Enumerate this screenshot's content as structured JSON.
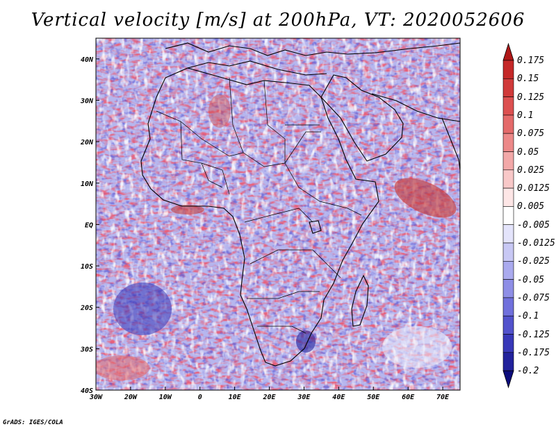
{
  "title": "Vertical velocity [m/s] at 200hPa, VT: 2020052606",
  "credit": "GrADS: IGES/COLA",
  "chart_data": {
    "type": "heatmap",
    "variable": "Vertical velocity",
    "units": "m/s",
    "level": "200hPa",
    "valid_time": "2020052606",
    "lon_range": [
      -30,
      75
    ],
    "lat_range": [
      -40,
      45
    ],
    "x_ticks": [
      "30W",
      "20W",
      "10W",
      "0",
      "10E",
      "20E",
      "30E",
      "40E",
      "50E",
      "60E",
      "70E"
    ],
    "y_ticks": [
      "40N",
      "30N",
      "20N",
      "10N",
      "EQ",
      "10S",
      "20S",
      "30S",
      "40S"
    ],
    "colorbar": {
      "levels": [
        "0.175",
        "0.15",
        "0.125",
        "0.1",
        "0.075",
        "0.05",
        "0.025",
        "0.0125",
        "0.005",
        "-0.005",
        "-0.0125",
        "-0.025",
        "-0.05",
        "-0.075",
        "-0.1",
        "-0.125",
        "-0.175",
        "-0.2"
      ],
      "colors": [
        "#b01818",
        "#c42828",
        "#d03a3a",
        "#dc5050",
        "#e46a6a",
        "#ec8888",
        "#f2a8a8",
        "#f8c8c8",
        "#fde6e6",
        "#ffffff",
        "#e4e4fb",
        "#c8c8f4",
        "#aaaaee",
        "#8e8ee6",
        "#7070dc",
        "#5252cc",
        "#3838b8",
        "#22229c",
        "#0c0c7c"
      ]
    },
    "features": {
      "strong_ascent": [
        "Arabian Sea near 60E 8N",
        "Gulf of Guinea coast near 5N"
      ],
      "strong_descent": [
        "South Atlantic cyclonic swirl near 20W 25S",
        "Southern Africa near 30E 28S"
      ]
    }
  }
}
